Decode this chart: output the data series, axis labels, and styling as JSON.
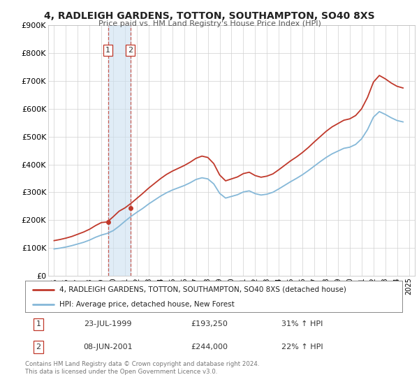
{
  "title": "4, RADLEIGH GARDENS, TOTTON, SOUTHAMPTON, SO40 8XS",
  "subtitle": "Price paid vs. HM Land Registry's House Price Index (HPI)",
  "ylim": [
    0,
    900000
  ],
  "yticks": [
    0,
    100000,
    200000,
    300000,
    400000,
    500000,
    600000,
    700000,
    800000,
    900000
  ],
  "ytick_labels": [
    "£0",
    "£100K",
    "£200K",
    "£300K",
    "£400K",
    "£500K",
    "£600K",
    "£700K",
    "£800K",
    "£900K"
  ],
  "xlim": [
    1994.5,
    2025.5
  ],
  "xticks": [
    1995,
    1996,
    1997,
    1998,
    1999,
    2000,
    2001,
    2002,
    2003,
    2004,
    2005,
    2006,
    2007,
    2008,
    2009,
    2010,
    2011,
    2012,
    2013,
    2014,
    2015,
    2016,
    2017,
    2018,
    2019,
    2020,
    2021,
    2022,
    2023,
    2024,
    2025
  ],
  "property_color": "#c0392b",
  "hpi_color": "#85b8d8",
  "sale1_date": 1999.55,
  "sale1_price": 193250,
  "sale2_date": 2001.44,
  "sale2_price": 244000,
  "shaded_region_start": 1999.55,
  "shaded_region_end": 2001.44,
  "legend_property": "4, RADLEIGH GARDENS, TOTTON, SOUTHAMPTON, SO40 8XS (detached house)",
  "legend_hpi": "HPI: Average price, detached house, New Forest",
  "table_row1": [
    "1",
    "23-JUL-1999",
    "£193,250",
    "31% ↑ HPI"
  ],
  "table_row2": [
    "2",
    "08-JUN-2001",
    "£244,000",
    "22% ↑ HPI"
  ],
  "footnote": "Contains HM Land Registry data © Crown copyright and database right 2024.\nThis data is licensed under the Open Government Licence v3.0.",
  "bg_color": "#ffffff",
  "grid_color": "#d0d0d0",
  "years_hpi": [
    1995,
    1995.5,
    1996,
    1996.5,
    1997,
    1997.5,
    1998,
    1998.5,
    1999,
    1999.5,
    2000,
    2000.5,
    2001,
    2001.5,
    2002,
    2002.5,
    2003,
    2003.5,
    2004,
    2004.5,
    2005,
    2005.5,
    2006,
    2006.5,
    2007,
    2007.5,
    2008,
    2008.5,
    2009,
    2009.5,
    2010,
    2010.5,
    2011,
    2011.5,
    2012,
    2012.5,
    2013,
    2013.5,
    2014,
    2014.5,
    2015,
    2015.5,
    2016,
    2016.5,
    2017,
    2017.5,
    2018,
    2018.5,
    2019,
    2019.5,
    2020,
    2020.5,
    2021,
    2021.5,
    2022,
    2022.5,
    2023,
    2023.5,
    2024,
    2024.5
  ],
  "hpi_values": [
    96000,
    99000,
    103000,
    108000,
    114000,
    120000,
    128000,
    138000,
    146000,
    152000,
    162000,
    178000,
    196000,
    213000,
    228000,
    242000,
    258000,
    272000,
    286000,
    298000,
    308000,
    316000,
    324000,
    334000,
    346000,
    352000,
    348000,
    330000,
    296000,
    279000,
    285000,
    291000,
    301000,
    305000,
    295000,
    290000,
    293000,
    300000,
    312000,
    325000,
    338000,
    350000,
    363000,
    378000,
    394000,
    410000,
    425000,
    438000,
    448000,
    458000,
    462000,
    472000,
    492000,
    525000,
    570000,
    590000,
    580000,
    568000,
    558000,
    553000
  ],
  "prop_values": [
    126000,
    130000,
    135000,
    141000,
    149000,
    157000,
    167000,
    180000,
    191000,
    193250,
    212000,
    232000,
    244000,
    260000,
    278000,
    296000,
    315000,
    332000,
    349000,
    364000,
    376000,
    386000,
    396000,
    408000,
    422000,
    430000,
    425000,
    403000,
    362000,
    341000,
    348000,
    355000,
    367000,
    372000,
    360000,
    354000,
    358000,
    366000,
    381000,
    397000,
    413000,
    427000,
    443000,
    461000,
    481000,
    500000,
    519000,
    535000,
    547000,
    559000,
    564000,
    576000,
    600000,
    641000,
    696000,
    720000,
    708000,
    693000,
    681000,
    675000
  ]
}
